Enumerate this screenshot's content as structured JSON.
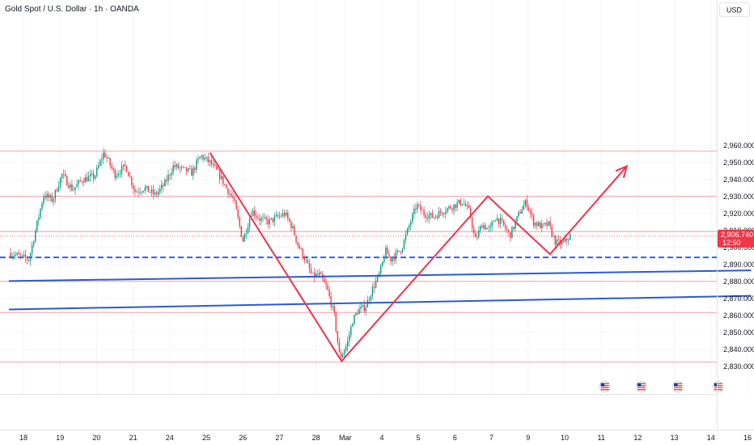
{
  "header": {
    "title": "Gold Spot / U.S. Dollar · 1h · OANDA"
  },
  "currency_button": {
    "label": "USD"
  },
  "price_badge": {
    "price": "2,906.740",
    "countdown": "12:50",
    "color": "#f23645"
  },
  "colors": {
    "bull": "#089981",
    "bear": "#f23645",
    "level_line": "#f7a1a8",
    "trend_line": "#2a5ad6",
    "support_dashed": "#2962ff",
    "pattern": "#f0334b",
    "grid": "#f3f4f7"
  },
  "chart_data": {
    "type": "candlestick",
    "title": "Gold Spot / U.S. Dollar · 1h · OANDA",
    "ylabel": "USD",
    "ylim": [
      2825.6,
      2969.6
    ],
    "y_ticks": [
      "2,830.000",
      "2,840.000",
      "2,850.000",
      "2,860.000",
      "2,870.000",
      "2,880.000",
      "2,890.000",
      "2,900.000",
      "2,910.000",
      "2,920.000",
      "2,930.000",
      "2,940.000",
      "2,950.000",
      "2,960.000"
    ],
    "y_tick_values": [
      2830,
      2840,
      2850,
      2860,
      2870,
      2880,
      2890,
      2900,
      2910,
      2920,
      2930,
      2940,
      2950,
      2960
    ],
    "x_ticks": [
      "18",
      "19",
      "20",
      "21",
      "24",
      "25",
      "26",
      "27",
      "28",
      "Mar",
      "4",
      "5",
      "6",
      "7",
      "9",
      "10",
      "11",
      "12",
      "13",
      "14",
      "16"
    ],
    "x_tick_index": [
      0,
      1,
      2,
      3,
      4,
      5,
      6,
      7,
      8,
      8.8,
      9.8,
      10.8,
      11.8,
      12.8,
      13.8,
      14.8,
      15.8,
      16.8,
      17.8,
      18.8,
      19.8
    ],
    "horizontal_levels": [
      2956.7,
      2930.2,
      2909.4,
      2880.1,
      2861.8,
      2832.7
    ],
    "support_dashed_level": 2894.2,
    "last_price": 2906.74,
    "trend_lines": [
      {
        "from": [
          -0.4,
          2880.3
        ],
        "to": [
          19.9,
          2886.6
        ]
      },
      {
        "from": [
          -0.4,
          2863.6
        ],
        "to": [
          19.9,
          2871.6
        ]
      }
    ],
    "pattern_path": [
      [
        5.1,
        2955.9
      ],
      [
        8.7,
        2833.2
      ],
      [
        12.7,
        2930.2
      ],
      [
        14.4,
        2896.1
      ],
      [
        16.5,
        2947.9
      ]
    ],
    "path_arrow": true,
    "events": [
      {
        "x": 15.9,
        "icon": "us-flag-icon"
      },
      {
        "x": 16.9,
        "icon": "us-flag-icon"
      },
      {
        "x": 17.9,
        "icon": "us-flag-icon"
      },
      {
        "x": 19.0,
        "icon": "us-flag-icon"
      }
    ],
    "price_anchors": [
      [
        -0.4,
        2897
      ],
      [
        0.15,
        2893
      ],
      [
        0.35,
        2912
      ],
      [
        0.55,
        2931
      ],
      [
        0.8,
        2928
      ],
      [
        1.05,
        2943
      ],
      [
        1.35,
        2934
      ],
      [
        1.6,
        2940
      ],
      [
        1.95,
        2942
      ],
      [
        2.2,
        2956
      ],
      [
        2.5,
        2943
      ],
      [
        2.8,
        2948
      ],
      [
        3.05,
        2933
      ],
      [
        3.3,
        2935
      ],
      [
        3.6,
        2931
      ],
      [
        3.85,
        2937
      ],
      [
        4.1,
        2948
      ],
      [
        4.35,
        2946
      ],
      [
        4.6,
        2944
      ],
      [
        4.85,
        2954
      ],
      [
        5.1,
        2950
      ],
      [
        5.35,
        2943
      ],
      [
        5.55,
        2935
      ],
      [
        5.75,
        2928
      ],
      [
        6.0,
        2904
      ],
      [
        6.25,
        2922
      ],
      [
        6.45,
        2917
      ],
      [
        6.7,
        2915
      ],
      [
        6.95,
        2918
      ],
      [
        7.15,
        2920
      ],
      [
        7.35,
        2912
      ],
      [
        7.5,
        2902
      ],
      [
        7.7,
        2893
      ],
      [
        7.9,
        2883
      ],
      [
        8.1,
        2884
      ],
      [
        8.3,
        2876
      ],
      [
        8.5,
        2860
      ],
      [
        8.65,
        2835
      ],
      [
        8.85,
        2843
      ],
      [
        9.0,
        2857
      ],
      [
        9.15,
        2863
      ],
      [
        9.35,
        2865
      ],
      [
        9.55,
        2876
      ],
      [
        9.75,
        2885
      ],
      [
        9.9,
        2898
      ],
      [
        10.05,
        2893
      ],
      [
        10.2,
        2896
      ],
      [
        10.35,
        2900
      ],
      [
        10.55,
        2913
      ],
      [
        10.75,
        2925
      ],
      [
        10.95,
        2920
      ],
      [
        11.2,
        2918
      ],
      [
        11.5,
        2922
      ],
      [
        11.8,
        2925
      ],
      [
        12.0,
        2927
      ],
      [
        12.2,
        2921
      ],
      [
        12.35,
        2904
      ],
      [
        12.55,
        2914
      ],
      [
        12.75,
        2910
      ],
      [
        12.9,
        2918
      ],
      [
        13.1,
        2914
      ],
      [
        13.3,
        2907
      ],
      [
        13.6,
        2922
      ],
      [
        13.75,
        2927
      ],
      [
        13.95,
        2915
      ],
      [
        14.2,
        2912
      ],
      [
        14.35,
        2914
      ],
      [
        14.55,
        2903
      ],
      [
        14.75,
        2902
      ],
      [
        14.95,
        2907
      ]
    ]
  }
}
